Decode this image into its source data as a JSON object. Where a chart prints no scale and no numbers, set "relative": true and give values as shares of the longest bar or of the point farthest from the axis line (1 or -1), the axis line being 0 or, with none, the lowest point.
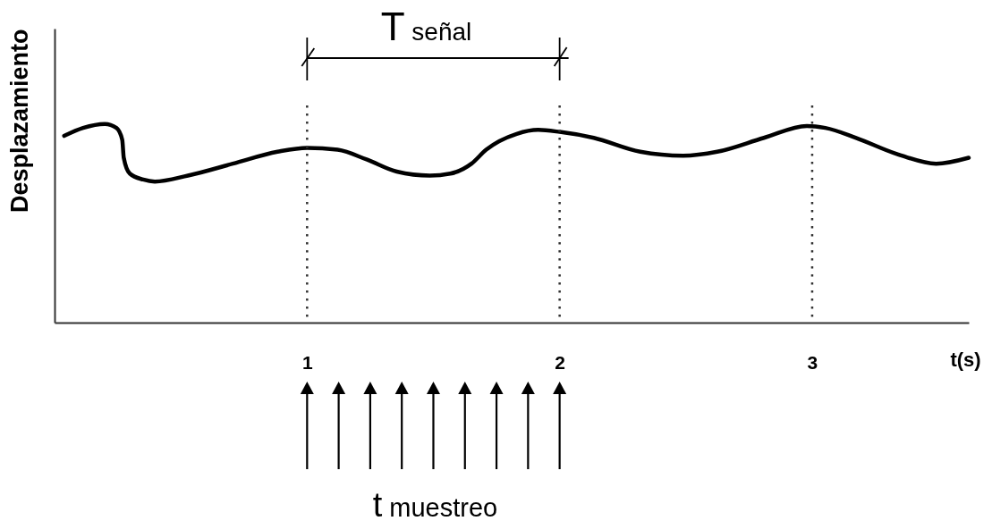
{
  "chart_data": {
    "type": "line",
    "xlabel": "t(s)",
    "ylabel": "Desplazamiento",
    "annotations": [
      "T señal",
      "t muestreo"
    ],
    "relative": true,
    "xlim": [
      0,
      3.62
    ],
    "xticks": [
      1,
      2,
      3
    ],
    "x": [
      0.038,
      0.113,
      0.199,
      0.245,
      0.268,
      0.274,
      0.298,
      0.351,
      0.397,
      0.528,
      0.706,
      0.883,
      1.0,
      1.121,
      1.238,
      1.355,
      1.486,
      1.567,
      1.651,
      1.709,
      1.83,
      1.915,
      2.0,
      2.135,
      2.319,
      2.489,
      2.624,
      2.809,
      2.979,
      3.052,
      3.174,
      3.333,
      3.491,
      3.62
    ],
    "series": [
      {
        "color": "#000000",
        "values": [
          0.94,
          0.98,
          1.0,
          0.98,
          0.92,
          0.83,
          0.75,
          0.72,
          0.71,
          0.74,
          0.8,
          0.86,
          0.88,
          0.87,
          0.82,
          0.76,
          0.74,
          0.75,
          0.8,
          0.87,
          0.95,
          0.97,
          0.96,
          0.93,
          0.86,
          0.84,
          0.86,
          0.93,
          0.99,
          0.98,
          0.93,
          0.85,
          0.8,
          0.83
        ]
      }
    ],
    "ref_lines": [
      {
        "axis": "x",
        "value": 1,
        "color": "#333333",
        "line_style": "dotted"
      },
      {
        "axis": "x",
        "value": 2,
        "color": "#333333",
        "line_style": "dotted"
      },
      {
        "axis": "x",
        "value": 3,
        "color": "#333333",
        "line_style": "dotted"
      }
    ]
  }
}
